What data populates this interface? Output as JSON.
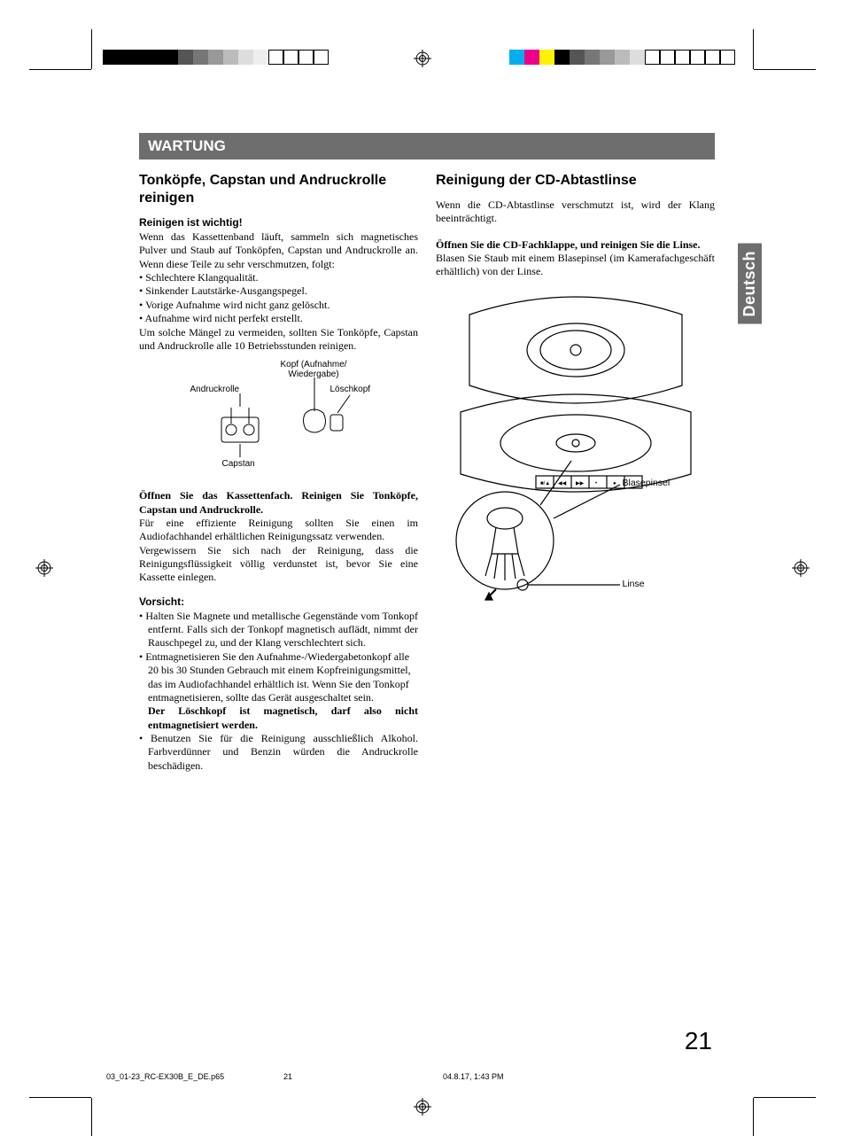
{
  "print_marks": {
    "left_bar_colors": [
      "#000000",
      "#000000",
      "#000000",
      "#000000",
      "#000000",
      "#555555",
      "#777777",
      "#999999",
      "#bbbbbb",
      "#dddddd",
      "#eeeeee",
      "#ffffff",
      "#ffffff",
      "#ffffff",
      "#ffffff"
    ],
    "right_bar_colors": [
      "#00aeef",
      "#ec008c",
      "#fff200",
      "#000000",
      "#555555",
      "#777777",
      "#999999",
      "#bbbbbb",
      "#dddddd",
      "#ffffff",
      "#ffffff",
      "#ffffff",
      "#ffffff",
      "#ffffff",
      "#ffffff"
    ]
  },
  "lang_tab": "Deutsch",
  "section_title": "WARTUNG",
  "left": {
    "h2": "Tonköpfe, Capstan und Andruckrolle reinigen",
    "h3a": "Reinigen ist wichtig!",
    "p1": "Wenn das Kassettenband läuft, sammeln sich magnetisches Pulver und Staub auf Tonköpfen, Capstan und Andruckrolle an. Wenn diese Teile zu sehr verschmutzen, folgt:",
    "bullets1": [
      "Schlechtere Klangqualität.",
      "Sinkender Lautstärke-Ausgangspegel.",
      "Vorige Aufnahme wird nicht ganz gelöscht.",
      "Aufnahme wird nicht perfekt erstellt."
    ],
    "p2": "Um solche Mängel zu vermeiden, sollten Sie Tonköpfe, Capstan und Andruckrolle alle 10 Betriebsstunden reinigen.",
    "diagram": {
      "label_andruckrolle": "Andruckrolle",
      "label_kopf": "Kopf (Aufnahme/\nWiedergabe)",
      "label_loeschkopf": "Löschkopf",
      "label_capstan": "Capstan"
    },
    "bold1": "Öffnen Sie das Kassettenfach. Reinigen Sie Tonköpfe, Capstan und Andruckrolle.",
    "p3": "Für eine effiziente Reinigung sollten Sie einen im Audiofachhandel erhältlichen Reinigungssatz verwenden.",
    "p4": "Vergewissern Sie sich nach der Reinigung, dass die Reinigungsflüssigkeit völlig verdunstet ist, bevor Sie eine Kassette einlegen.",
    "h3b": "Vorsicht:",
    "caution1": "Halten Sie Magnete und metallische Gegenstände vom Tonkopf entfernt. Falls sich der Tonkopf magnetisch auflädt, nimmt der Rauschpegel zu, und der Klang verschlechtert sich.",
    "caution2": "Entmagnetisieren Sie den Aufnahme-/Wiedergabetonkopf alle 20 bis 30 Stunden Gebrauch mit einem Kopfreinigungsmittel, das im Audiofachhandel erhältlich ist. Wenn Sie den Tonkopf entmagnetisieren, sollte das Gerät ausgeschaltet sein.",
    "caution2b": "Der Löschkopf ist magnetisch, darf also nicht entmagnetisiert werden.",
    "caution3": "Benutzen Sie für die Reinigung ausschließlich Alkohol. Farbverdünner und Benzin würden die Andruckrolle beschädigen."
  },
  "right": {
    "h2": "Reinigung der CD-Abtastlinse",
    "p1": "Wenn die CD-Abtastlinse verschmutzt ist, wird der Klang beeinträchtigt.",
    "bold1": "Öffnen Sie die CD-Fachklappe, und reinigen Sie die Linse.",
    "p2": "Blasen Sie Staub mit einem Blasepinsel (im Kamerafachgeschäft erhältlich) von der Linse.",
    "diagram": {
      "label_blasepinsel": "Blasepinsel",
      "label_linse": "Linse"
    }
  },
  "page_number": "21",
  "footer": {
    "file": "03_01-23_RC-EX30B_E_DE.p65",
    "page": "21",
    "timestamp": "04.8.17, 1:43 PM"
  }
}
